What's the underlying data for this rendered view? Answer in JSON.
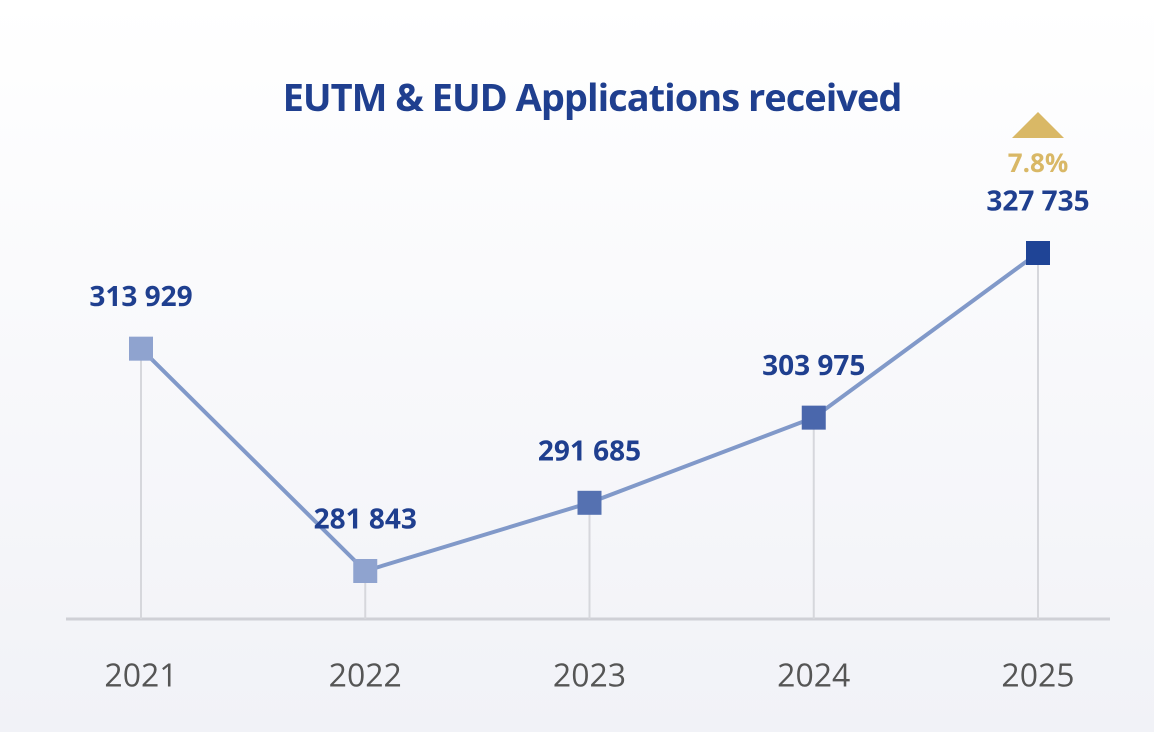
{
  "chart_data": {
    "type": "line",
    "title": "EUTM & EUD Applications received",
    "categories": [
      "2021",
      "2022",
      "2023",
      "2024",
      "2025"
    ],
    "values": [
      313929,
      281843,
      291685,
      303975,
      327735
    ],
    "value_labels": [
      "313 929",
      "281 843",
      "291 685",
      "303 975",
      "327 735"
    ],
    "color": "#8199c9",
    "marker_colors": [
      "#8fa3cf",
      "#8fa3cf",
      "#5571b1",
      "#4a67ac",
      "#1f4496"
    ],
    "annotation": {
      "text": "7.8%",
      "color": "#d9b866"
    }
  }
}
